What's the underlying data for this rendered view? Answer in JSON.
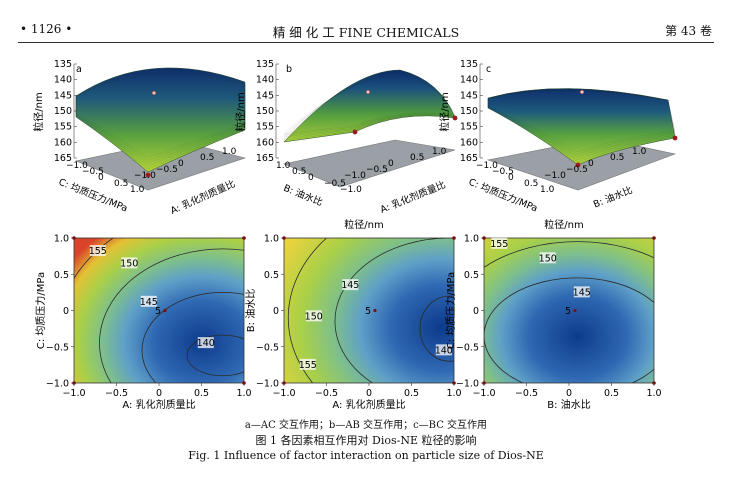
{
  "header": {
    "page_number": "• 1126 •",
    "journal": "精 细 化 工   FINE CHEMICALS",
    "volume": "第 43 卷"
  },
  "surface_plots": [
    {
      "panel": "a",
      "z_label": "粒径/nm",
      "z_ticks": [
        "135",
        "140",
        "145",
        "150",
        "155",
        "160",
        "165"
      ],
      "x_label": "A: 乳化剂质量比",
      "x_ticks": [
        "−1.0",
        "−0.5",
        "0",
        "0.5",
        "1.0"
      ],
      "y_label": "C: 均质压力/MPa",
      "y_ticks": [
        "−1.0",
        "−0.5",
        "0",
        "0.5",
        "1.0"
      ]
    },
    {
      "panel": "b",
      "z_label": "粒径/nm",
      "z_ticks": [
        "135",
        "140",
        "145",
        "150",
        "155",
        "160",
        "165"
      ],
      "x_label": "A: 乳化剂质量比",
      "x_ticks": [
        "−1.0",
        "−0.5",
        "0",
        "0.5",
        "1.0"
      ],
      "y_label": "B: 油水比",
      "y_ticks": [
        "1.0",
        "0.5",
        "0",
        "−0.5",
        "−1.0"
      ],
      "title": "粒径/nm"
    },
    {
      "panel": "c",
      "z_label": "粒径/nm",
      "z_ticks": [
        "135",
        "140",
        "145",
        "150",
        "155",
        "160",
        "165"
      ],
      "x_label": "B: 油水比",
      "x_ticks": [
        "−1.0",
        "−0.5",
        "0",
        "0.5",
        "1.0"
      ],
      "y_label": "C: 均质压力/MPa",
      "y_ticks": [
        "−1.0",
        "−0.5",
        "0",
        "0.5",
        "1.0"
      ],
      "title": "粒径/nm"
    }
  ],
  "chart_data": [
    {
      "type": "heatmap",
      "panel": "a",
      "xlabel": "A: 乳化剂质量比",
      "ylabel": "C: 均质压力/MPa",
      "xlim": [
        -1,
        1
      ],
      "ylim": [
        -1,
        1
      ],
      "x_ticks": [
        "−1.0",
        "−0.5",
        "0",
        "0.5",
        "1.0"
      ],
      "y_ticks": [
        "1.0",
        "0.5",
        "0",
        "−0.5",
        "−1.0"
      ],
      "contour_labels": [
        {
          "text": "155",
          "x": -0.72,
          "y": 0.82
        },
        {
          "text": "150",
          "x": -0.35,
          "y": 0.65
        },
        {
          "text": "145",
          "x": -0.12,
          "y": 0.12
        },
        {
          "text": "140",
          "x": 0.55,
          "y": -0.45
        }
      ],
      "center_point": {
        "label": "5",
        "x": 0,
        "y": 0
      }
    },
    {
      "type": "heatmap",
      "panel": "b",
      "xlabel": "A: 乳化剂质量比",
      "ylabel": "B: 油水比",
      "xlim": [
        -1,
        1
      ],
      "ylim": [
        -1,
        1
      ],
      "x_ticks": [
        "−1.0",
        "−0.5",
        "0",
        "0.5",
        "1.0"
      ],
      "y_ticks": [
        "1.0",
        "0.5",
        "0",
        "−0.5",
        "−1.0"
      ],
      "contour_labels": [
        {
          "text": "145",
          "x": -0.22,
          "y": 0.35
        },
        {
          "text": "150",
          "x": -0.65,
          "y": -0.08
        },
        {
          "text": "155",
          "x": -0.72,
          "y": -0.75
        },
        {
          "text": "140",
          "x": 0.88,
          "y": -0.55
        }
      ],
      "center_point": {
        "label": "5",
        "x": 0,
        "y": 0
      }
    },
    {
      "type": "heatmap",
      "panel": "c",
      "xlabel": "B: 油水比",
      "ylabel": "C: 均质压力/MPa",
      "xlim": [
        -1,
        1
      ],
      "ylim": [
        -1,
        1
      ],
      "x_ticks": [
        "−1.0",
        "−0.5",
        "0",
        "0.5",
        "1.0"
      ],
      "y_ticks": [
        "1.0",
        "0.5",
        "0",
        "−0.5",
        "−1.0"
      ],
      "contour_labels": [
        {
          "text": "155",
          "x": -0.82,
          "y": 0.92
        },
        {
          "text": "150",
          "x": -0.25,
          "y": 0.72
        },
        {
          "text": "145",
          "x": 0.15,
          "y": 0.25
        }
      ],
      "center_point": {
        "label": "5",
        "x": 0,
        "y": 0
      }
    }
  ],
  "captions": {
    "legend": "a—AC 交互作用；b—AB 交互作用；c—BC 交互作用",
    "figure_cn": "图 1   各因素相互作用对 Dios-NE 粒径的影响",
    "figure_en": "Fig. 1    Influence of factor interaction on particle size of Dios-NE"
  }
}
